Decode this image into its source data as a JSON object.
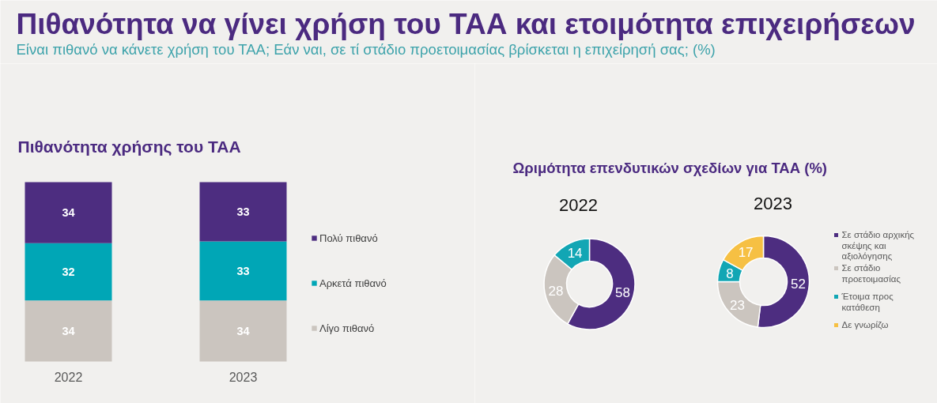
{
  "chart_data": [
    {
      "type": "bar",
      "title": "Πιθανότητα να γίνει χρήση του ΤΑΑ και ετοιμότητα επιχειρήσεων",
      "subtitle": "Είναι πιθανό να κάνετε χρήση του ΤΑΑ; Εάν ναι, σε τί στάδιο προετοιμασίας βρίσκεται η επιχείρησή σας; (%)",
      "annotations": [
        "Πιθανότητα χρήσης του ΤΑΑ"
      ],
      "categories": [
        "2022",
        "2023"
      ],
      "stacked": true,
      "series": [
        {
          "name": "Λίγο πιθανό",
          "color": "#cbc5bf",
          "values": [
            34,
            34
          ]
        },
        {
          "name": "Αρκετά πιθανό",
          "color": "#00a6b6",
          "values": [
            32,
            33
          ]
        },
        {
          "name": "Πολύ πιθανό",
          "color": "#4d2d80",
          "values": [
            34,
            33
          ]
        }
      ],
      "data_labels": true,
      "legend": "right"
    },
    {
      "type": "donut",
      "title": "Ωριμότητα επενδυτικών σχεδίων για ΤΑΑ (%)",
      "categories": [
        "Σε στάδιο αρχικής σκέψης και αξιολόγησης",
        "Σε στάδιο προετοιμασίας",
        "Έτοιμα προς κατάθεση",
        "Δε γνωρίζω"
      ],
      "colors": [
        "#4d2d80",
        "#cbc5bf",
        "#12a6b4",
        "#f6c043"
      ],
      "series": [
        {
          "name": "2022",
          "values": [
            58,
            28,
            14,
            null
          ]
        },
        {
          "name": "2023",
          "values": [
            52,
            23,
            8,
            17
          ]
        }
      ],
      "data_labels": true,
      "legend": "right"
    }
  ]
}
